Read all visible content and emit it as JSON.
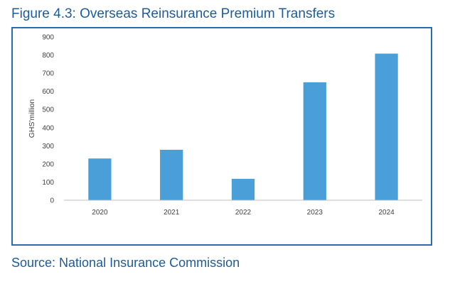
{
  "figure": {
    "title": "Figure 4.3:  Overseas Reinsurance Premium Transfers",
    "source": "Source: National Insurance Commission"
  },
  "colors": {
    "title": "#1b5c9a",
    "frame": "#2a6cab",
    "bar": "#4a9fd8",
    "axis": "#bfbfbf",
    "text": "#404040"
  },
  "chart_data": {
    "type": "bar",
    "title": "",
    "xlabel": "",
    "ylabel": "GHS'million",
    "categories": [
      "2020",
      "2021",
      "2022",
      "2023",
      "2024"
    ],
    "values": [
      230,
      278,
      118,
      650,
      808
    ],
    "ylim": [
      0,
      900
    ],
    "yticks": [
      0,
      100,
      200,
      300,
      400,
      500,
      600,
      700,
      800,
      900
    ],
    "grid": false,
    "legend": "none"
  }
}
